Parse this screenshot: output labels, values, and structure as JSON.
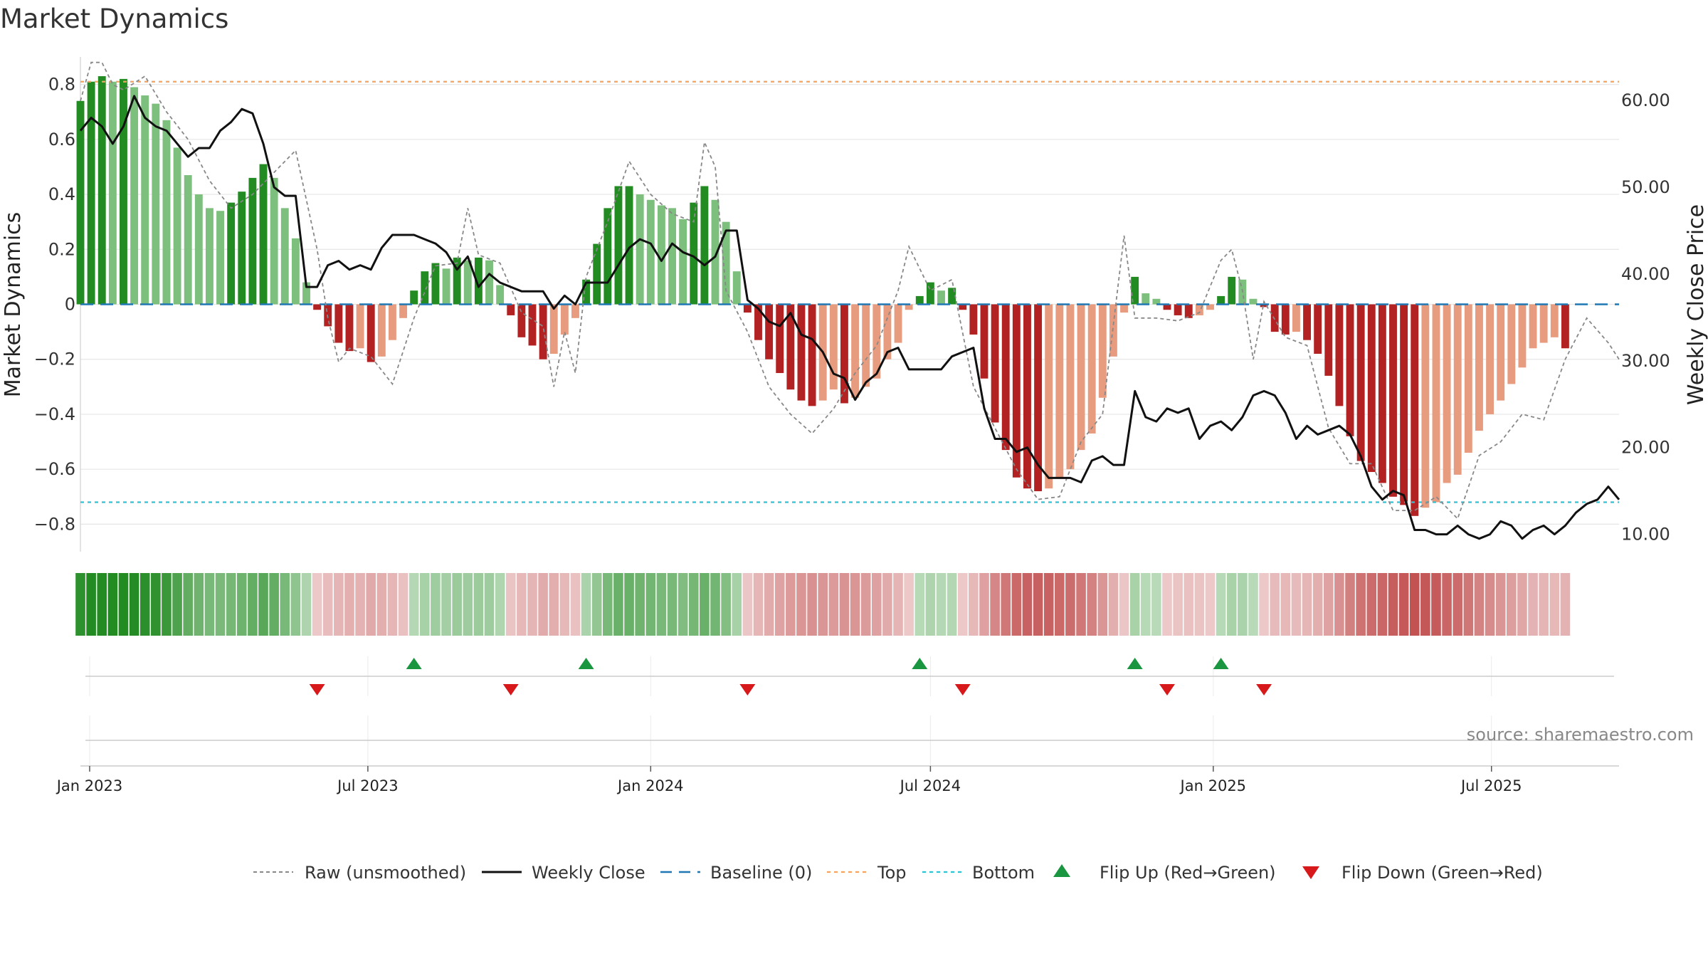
{
  "title": "Market Dynamics",
  "source_note": "source: sharemaestro.com",
  "colors": {
    "strong_green": "#228b22",
    "light_green": "#7dbf7d",
    "strong_red": "#b22222",
    "light_red": "#e79c80",
    "raw": "#888888",
    "close": "#111111",
    "baseline": "#1f77b4",
    "top": "#f4a460",
    "bottom": "#2ec4d6",
    "flip_up": "#1a9641",
    "flip_down": "#d7191c",
    "grid": "#e6e6e6"
  },
  "chart_data": {
    "type": "bar",
    "title": "Market Dynamics",
    "ylabel_left": "Market Dynamics",
    "ylabel_right": "Weekly Close Price",
    "ylim_left": [
      -0.9,
      0.9
    ],
    "ylim_right": [
      8,
      65
    ],
    "yticks_left": [
      "0.8",
      "0.6",
      "0.4",
      "0.2",
      "0",
      "−0.2",
      "−0.4",
      "−0.6",
      "−0.8"
    ],
    "yticks_left_values": [
      0.8,
      0.6,
      0.4,
      0.2,
      0,
      -0.2,
      -0.4,
      -0.6,
      -0.8
    ],
    "yticks_right": [
      "60.00",
      "50.00",
      "40.00",
      "30.00",
      "20.00",
      "10.00"
    ],
    "yticks_right_values": [
      60,
      50,
      40,
      30,
      20,
      10
    ],
    "x_range": [
      "2022-12-26",
      "2025-09-22"
    ],
    "x_ticks": [
      {
        "label": "Jan 2023",
        "date": "2023-01-01"
      },
      {
        "label": "Jul 2023",
        "date": "2023-07-01"
      },
      {
        "label": "Jan 2024",
        "date": "2024-01-01"
      },
      {
        "label": "Jul 2024",
        "date": "2024-07-01"
      },
      {
        "label": "Jan 2025",
        "date": "2025-01-01"
      },
      {
        "label": "Jul 2025",
        "date": "2025-07-01"
      }
    ],
    "top_level": 0.81,
    "bottom_level": -0.72,
    "baseline": 0,
    "segments": [
      {
        "start": "2022-12-26",
        "values": [
          0.74,
          0.81,
          0.83,
          0.81,
          0.82,
          0.79,
          0.76,
          0.73,
          0.67,
          0.57,
          0.47,
          0.4,
          0.35,
          0.34,
          0.37,
          0.41,
          0.46,
          0.51,
          0.46,
          0.35,
          0.24,
          0.08
        ]
      },
      {
        "start": "2023-05-29",
        "values": [
          -0.02,
          -0.08,
          -0.14,
          -0.17,
          -0.16,
          -0.21,
          -0.19,
          -0.13,
          -0.05
        ]
      },
      {
        "start": "2023-07-31",
        "values": [
          0.05,
          0.12,
          0.15,
          0.13,
          0.17,
          0.16,
          0.17,
          0.16,
          0.07
        ]
      },
      {
        "start": "2023-10-02",
        "values": [
          -0.04,
          -0.12,
          -0.15,
          -0.2,
          -0.18,
          -0.11,
          -0.05
        ]
      },
      {
        "start": "2023-11-20",
        "values": [
          0.09,
          0.22,
          0.35,
          0.43,
          0.43,
          0.4,
          0.38,
          0.36,
          0.35,
          0.31,
          0.37,
          0.43,
          0.38,
          0.3,
          0.12
        ]
      },
      {
        "start": "2024-03-04",
        "values": [
          -0.03,
          -0.13,
          -0.2,
          -0.25,
          -0.31,
          -0.35,
          -0.37,
          -0.35,
          -0.31,
          -0.36,
          -0.34,
          -0.3,
          -0.27,
          -0.2,
          -0.14,
          -0.02
        ]
      },
      {
        "start": "2024-06-24",
        "values": [
          0.03,
          0.08,
          0.05,
          0.06
        ]
      },
      {
        "start": "2024-07-22",
        "values": [
          -0.02,
          -0.11,
          -0.27,
          -0.43,
          -0.53,
          -0.63,
          -0.67,
          -0.68,
          -0.67,
          -0.63,
          -0.6,
          -0.53,
          -0.47,
          -0.34,
          -0.19,
          -0.03
        ]
      },
      {
        "start": "2024-11-11",
        "values": [
          0.1,
          0.04,
          0.02
        ]
      },
      {
        "start": "2024-12-02",
        "values": [
          -0.02,
          -0.04,
          -0.05,
          -0.04,
          -0.02
        ]
      },
      {
        "start": "2025-01-06",
        "values": [
          0.03,
          0.1,
          0.09,
          0.02
        ]
      },
      {
        "start": "2025-02-03",
        "values": [
          -0.01,
          -0.1,
          -0.11,
          -0.1,
          -0.13,
          -0.18,
          -0.26,
          -0.37,
          -0.48,
          -0.57,
          -0.61,
          -0.65,
          -0.7,
          -0.73,
          -0.77,
          -0.74,
          -0.72,
          -0.65,
          -0.62,
          -0.54,
          -0.46,
          -0.4,
          -0.35,
          -0.29,
          -0.23,
          -0.16,
          -0.14,
          -0.12,
          -0.16
        ]
      }
    ],
    "raw_series": {
      "name": "Raw (unsmoothed)",
      "points": [
        [
          "2022-12-26",
          0.74
        ],
        [
          "2023-01-02",
          0.88
        ],
        [
          "2023-01-09",
          0.88
        ],
        [
          "2023-01-16",
          0.8
        ],
        [
          "2023-01-23",
          0.78
        ],
        [
          "2023-02-06",
          0.83
        ],
        [
          "2023-02-20",
          0.7
        ],
        [
          "2023-03-06",
          0.6
        ],
        [
          "2023-03-20",
          0.45
        ],
        [
          "2023-04-03",
          0.35
        ],
        [
          "2023-04-17",
          0.4
        ],
        [
          "2023-05-01",
          0.48
        ],
        [
          "2023-05-15",
          0.56
        ],
        [
          "2023-05-29",
          0.2
        ],
        [
          "2023-06-05",
          -0.05
        ],
        [
          "2023-06-12",
          -0.21
        ],
        [
          "2023-06-19",
          -0.16
        ],
        [
          "2023-07-03",
          -0.19
        ],
        [
          "2023-07-17",
          -0.29
        ],
        [
          "2023-07-31",
          -0.05
        ],
        [
          "2023-08-14",
          0.14
        ],
        [
          "2023-08-28",
          0.15
        ],
        [
          "2023-09-04",
          0.35
        ],
        [
          "2023-09-11",
          0.18
        ],
        [
          "2023-09-25",
          0.15
        ],
        [
          "2023-10-09",
          -0.03
        ],
        [
          "2023-10-23",
          -0.08
        ],
        [
          "2023-10-30",
          -0.3
        ],
        [
          "2023-11-06",
          -0.1
        ],
        [
          "2023-11-13",
          -0.25
        ],
        [
          "2023-11-20",
          0.1
        ],
        [
          "2023-12-04",
          0.3
        ],
        [
          "2023-12-18",
          0.52
        ],
        [
          "2024-01-01",
          0.4
        ],
        [
          "2024-01-15",
          0.33
        ],
        [
          "2024-01-29",
          0.3
        ],
        [
          "2024-02-05",
          0.59
        ],
        [
          "2024-02-12",
          0.5
        ],
        [
          "2024-02-19",
          0.05
        ],
        [
          "2024-03-04",
          -0.1
        ],
        [
          "2024-03-18",
          -0.3
        ],
        [
          "2024-04-01",
          -0.4
        ],
        [
          "2024-04-15",
          -0.47
        ],
        [
          "2024-04-29",
          -0.38
        ],
        [
          "2024-05-13",
          -0.25
        ],
        [
          "2024-05-27",
          -0.15
        ],
        [
          "2024-06-10",
          0.05
        ],
        [
          "2024-06-17",
          0.21
        ],
        [
          "2024-07-01",
          0.05
        ],
        [
          "2024-07-15",
          0.09
        ],
        [
          "2024-07-29",
          -0.3
        ],
        [
          "2024-08-12",
          -0.45
        ],
        [
          "2024-08-26",
          -0.6
        ],
        [
          "2024-09-09",
          -0.71
        ],
        [
          "2024-09-23",
          -0.7
        ],
        [
          "2024-10-07",
          -0.5
        ],
        [
          "2024-10-21",
          -0.4
        ],
        [
          "2024-11-04",
          0.25
        ],
        [
          "2024-11-11",
          -0.05
        ],
        [
          "2024-11-25",
          -0.05
        ],
        [
          "2024-12-09",
          -0.06
        ],
        [
          "2024-12-23",
          -0.03
        ],
        [
          "2025-01-06",
          0.16
        ],
        [
          "2025-01-13",
          0.2
        ],
        [
          "2025-01-20",
          0.05
        ],
        [
          "2025-01-27",
          -0.2
        ],
        [
          "2025-02-03",
          0.01
        ],
        [
          "2025-02-17",
          -0.12
        ],
        [
          "2025-03-03",
          -0.15
        ],
        [
          "2025-03-17",
          -0.45
        ],
        [
          "2025-03-31",
          -0.58
        ],
        [
          "2025-04-14",
          -0.58
        ],
        [
          "2025-04-28",
          -0.75
        ],
        [
          "2025-05-12",
          -0.75
        ],
        [
          "2025-05-26",
          -0.7
        ],
        [
          "2025-06-09",
          -0.78
        ],
        [
          "2025-06-23",
          -0.55
        ],
        [
          "2025-07-07",
          -0.5
        ],
        [
          "2025-07-21",
          -0.4
        ],
        [
          "2025-08-04",
          -0.42
        ],
        [
          "2025-08-18",
          -0.2
        ],
        [
          "2025-09-01",
          -0.05
        ],
        [
          "2025-09-15",
          -0.14
        ],
        [
          "2025-09-22",
          -0.2
        ]
      ]
    },
    "close_series": {
      "name": "Weekly Close",
      "points": [
        [
          "2022-12-26",
          56.5
        ],
        [
          "2023-01-02",
          58.0
        ],
        [
          "2023-01-09",
          57.0
        ],
        [
          "2023-01-16",
          55.0
        ],
        [
          "2023-01-23",
          57.0
        ],
        [
          "2023-01-30",
          60.5
        ],
        [
          "2023-02-06",
          58.0
        ],
        [
          "2023-02-13",
          57.0
        ],
        [
          "2023-02-20",
          56.5
        ],
        [
          "2023-02-27",
          55.0
        ],
        [
          "2023-03-06",
          53.5
        ],
        [
          "2023-03-13",
          54.5
        ],
        [
          "2023-03-20",
          54.5
        ],
        [
          "2023-03-27",
          56.5
        ],
        [
          "2023-04-03",
          57.5
        ],
        [
          "2023-04-10",
          59.0
        ],
        [
          "2023-04-17",
          58.5
        ],
        [
          "2023-04-24",
          55.0
        ],
        [
          "2023-05-01",
          50.0
        ],
        [
          "2023-05-08",
          49.0
        ],
        [
          "2023-05-15",
          49.0
        ],
        [
          "2023-05-22",
          38.5
        ],
        [
          "2023-05-29",
          38.5
        ],
        [
          "2023-06-05",
          41.0
        ],
        [
          "2023-06-12",
          41.5
        ],
        [
          "2023-06-19",
          40.5
        ],
        [
          "2023-06-26",
          41.0
        ],
        [
          "2023-07-03",
          40.5
        ],
        [
          "2023-07-10",
          43.0
        ],
        [
          "2023-07-17",
          44.5
        ],
        [
          "2023-07-24",
          44.5
        ],
        [
          "2023-07-31",
          44.5
        ],
        [
          "2023-08-07",
          44.0
        ],
        [
          "2023-08-14",
          43.5
        ],
        [
          "2023-08-21",
          42.5
        ],
        [
          "2023-08-28",
          40.5
        ],
        [
          "2023-09-04",
          42.0
        ],
        [
          "2023-09-11",
          38.5
        ],
        [
          "2023-09-18",
          40.0
        ],
        [
          "2023-09-25",
          39.0
        ],
        [
          "2023-10-02",
          38.5
        ],
        [
          "2023-10-09",
          38.0
        ],
        [
          "2023-10-16",
          38.0
        ],
        [
          "2023-10-23",
          38.0
        ],
        [
          "2023-10-30",
          36.0
        ],
        [
          "2023-11-06",
          37.5
        ],
        [
          "2023-11-13",
          36.5
        ],
        [
          "2023-11-20",
          39.0
        ],
        [
          "2023-11-27",
          39.0
        ],
        [
          "2023-12-04",
          39.0
        ],
        [
          "2023-12-11",
          41.0
        ],
        [
          "2023-12-18",
          43.0
        ],
        [
          "2023-12-25",
          44.0
        ],
        [
          "2024-01-01",
          43.5
        ],
        [
          "2024-01-08",
          41.5
        ],
        [
          "2024-01-15",
          43.5
        ],
        [
          "2024-01-22",
          42.5
        ],
        [
          "2024-01-29",
          42.0
        ],
        [
          "2024-02-05",
          41.0
        ],
        [
          "2024-02-12",
          42.0
        ],
        [
          "2024-02-19",
          45.0
        ],
        [
          "2024-02-26",
          45.0
        ],
        [
          "2024-03-04",
          37.0
        ],
        [
          "2024-03-11",
          36.0
        ],
        [
          "2024-03-18",
          34.5
        ],
        [
          "2024-03-25",
          34.0
        ],
        [
          "2024-04-01",
          35.5
        ],
        [
          "2024-04-08",
          33.0
        ],
        [
          "2024-04-15",
          32.5
        ],
        [
          "2024-04-22",
          31.0
        ],
        [
          "2024-04-29",
          28.5
        ],
        [
          "2024-05-06",
          28.0
        ],
        [
          "2024-05-13",
          25.5
        ],
        [
          "2024-05-20",
          27.5
        ],
        [
          "2024-05-27",
          28.5
        ],
        [
          "2024-06-03",
          31.0
        ],
        [
          "2024-06-10",
          31.5
        ],
        [
          "2024-06-17",
          29.0
        ],
        [
          "2024-06-24",
          29.0
        ],
        [
          "2024-07-01",
          29.0
        ],
        [
          "2024-07-08",
          29.0
        ],
        [
          "2024-07-15",
          30.5
        ],
        [
          "2024-07-22",
          31.0
        ],
        [
          "2024-07-29",
          31.5
        ],
        [
          "2024-08-05",
          24.5
        ],
        [
          "2024-08-12",
          21.0
        ],
        [
          "2024-08-19",
          21.0
        ],
        [
          "2024-08-26",
          19.5
        ],
        [
          "2024-09-02",
          20.0
        ],
        [
          "2024-09-09",
          18.0
        ],
        [
          "2024-09-16",
          16.5
        ],
        [
          "2024-09-23",
          16.5
        ],
        [
          "2024-09-30",
          16.5
        ],
        [
          "2024-10-07",
          16.0
        ],
        [
          "2024-10-14",
          18.5
        ],
        [
          "2024-10-21",
          19.0
        ],
        [
          "2024-10-28",
          18.0
        ],
        [
          "2024-11-04",
          18.0
        ],
        [
          "2024-11-11",
          26.5
        ],
        [
          "2024-11-18",
          23.5
        ],
        [
          "2024-11-25",
          23.0
        ],
        [
          "2024-12-02",
          24.5
        ],
        [
          "2024-12-09",
          24.0
        ],
        [
          "2024-12-16",
          24.5
        ],
        [
          "2024-12-23",
          21.0
        ],
        [
          "2024-12-30",
          22.5
        ],
        [
          "2025-01-06",
          23.0
        ],
        [
          "2025-01-13",
          22.0
        ],
        [
          "2025-01-20",
          23.5
        ],
        [
          "2025-01-27",
          26.0
        ],
        [
          "2025-02-03",
          26.5
        ],
        [
          "2025-02-10",
          26.0
        ],
        [
          "2025-02-17",
          24.0
        ],
        [
          "2025-02-24",
          21.0
        ],
        [
          "2025-03-03",
          22.5
        ],
        [
          "2025-03-10",
          21.5
        ],
        [
          "2025-03-17",
          22.0
        ],
        [
          "2025-03-24",
          22.5
        ],
        [
          "2025-03-31",
          21.5
        ],
        [
          "2025-04-07",
          19.0
        ],
        [
          "2025-04-14",
          15.5
        ],
        [
          "2025-04-21",
          14.0
        ],
        [
          "2025-04-28",
          15.0
        ],
        [
          "2025-05-05",
          14.5
        ],
        [
          "2025-05-12",
          10.5
        ],
        [
          "2025-05-19",
          10.5
        ],
        [
          "2025-05-26",
          10.0
        ],
        [
          "2025-06-02",
          10.0
        ],
        [
          "2025-06-09",
          11.0
        ],
        [
          "2025-06-16",
          10.0
        ],
        [
          "2025-06-23",
          9.5
        ],
        [
          "2025-06-30",
          10.0
        ],
        [
          "2025-07-07",
          11.5
        ],
        [
          "2025-07-14",
          11.0
        ],
        [
          "2025-07-21",
          9.5
        ],
        [
          "2025-07-28",
          10.5
        ],
        [
          "2025-08-04",
          11.0
        ],
        [
          "2025-08-11",
          10.0
        ],
        [
          "2025-08-18",
          11.0
        ],
        [
          "2025-08-25",
          12.5
        ],
        [
          "2025-09-01",
          13.5
        ],
        [
          "2025-09-08",
          14.0
        ],
        [
          "2025-09-15",
          15.5
        ],
        [
          "2025-09-22",
          14.0
        ]
      ]
    },
    "flip_up_dates": [
      "2023-07-31",
      "2023-11-20",
      "2024-06-24",
      "2024-11-11",
      "2025-01-06"
    ],
    "flip_down_dates": [
      "2023-05-29",
      "2023-10-02",
      "2024-03-04",
      "2024-07-22",
      "2024-12-02",
      "2025-02-03"
    ],
    "legend": [
      {
        "key": "raw",
        "label": "Raw (unsmoothed)"
      },
      {
        "key": "close",
        "label": "Weekly Close"
      },
      {
        "key": "baseline",
        "label": "Baseline (0)"
      },
      {
        "key": "top",
        "label": "Top"
      },
      {
        "key": "bottom",
        "label": "Bottom"
      },
      {
        "key": "flip_up",
        "label": "Flip Up (Red→Green)"
      },
      {
        "key": "flip_down",
        "label": "Flip Down (Green→Red)"
      }
    ],
    "legend_position": "bottom-center",
    "grid": true
  }
}
